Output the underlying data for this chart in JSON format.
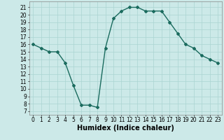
{
  "x": [
    0,
    1,
    2,
    3,
    4,
    5,
    6,
    7,
    8,
    9,
    10,
    11,
    12,
    13,
    14,
    15,
    16,
    17,
    18,
    19,
    20,
    21,
    22,
    23
  ],
  "y": [
    16,
    15.5,
    15,
    15,
    13.5,
    10.5,
    7.8,
    7.8,
    7.5,
    15.5,
    19.5,
    20.5,
    21,
    21,
    20.5,
    20.5,
    20.5,
    19,
    17.5,
    16,
    15.5,
    14.5,
    14,
    13.5
  ],
  "line_color": "#1a6b5e",
  "marker": "D",
  "marker_size": 2,
  "bg_color": "#cce9e8",
  "grid_color": "#aad4d2",
  "xlabel": "Humidex (Indice chaleur)",
  "xlim": [
    -0.5,
    23.5
  ],
  "ylim": [
    6.5,
    21.8
  ],
  "xticks": [
    0,
    1,
    2,
    3,
    4,
    5,
    6,
    7,
    8,
    9,
    10,
    11,
    12,
    13,
    14,
    15,
    16,
    17,
    18,
    19,
    20,
    21,
    22,
    23
  ],
  "yticks": [
    7,
    8,
    9,
    10,
    11,
    12,
    13,
    14,
    15,
    16,
    17,
    18,
    19,
    20,
    21
  ],
  "xlabel_fontsize": 7,
  "tick_fontsize": 5.5,
  "linewidth": 1.0
}
